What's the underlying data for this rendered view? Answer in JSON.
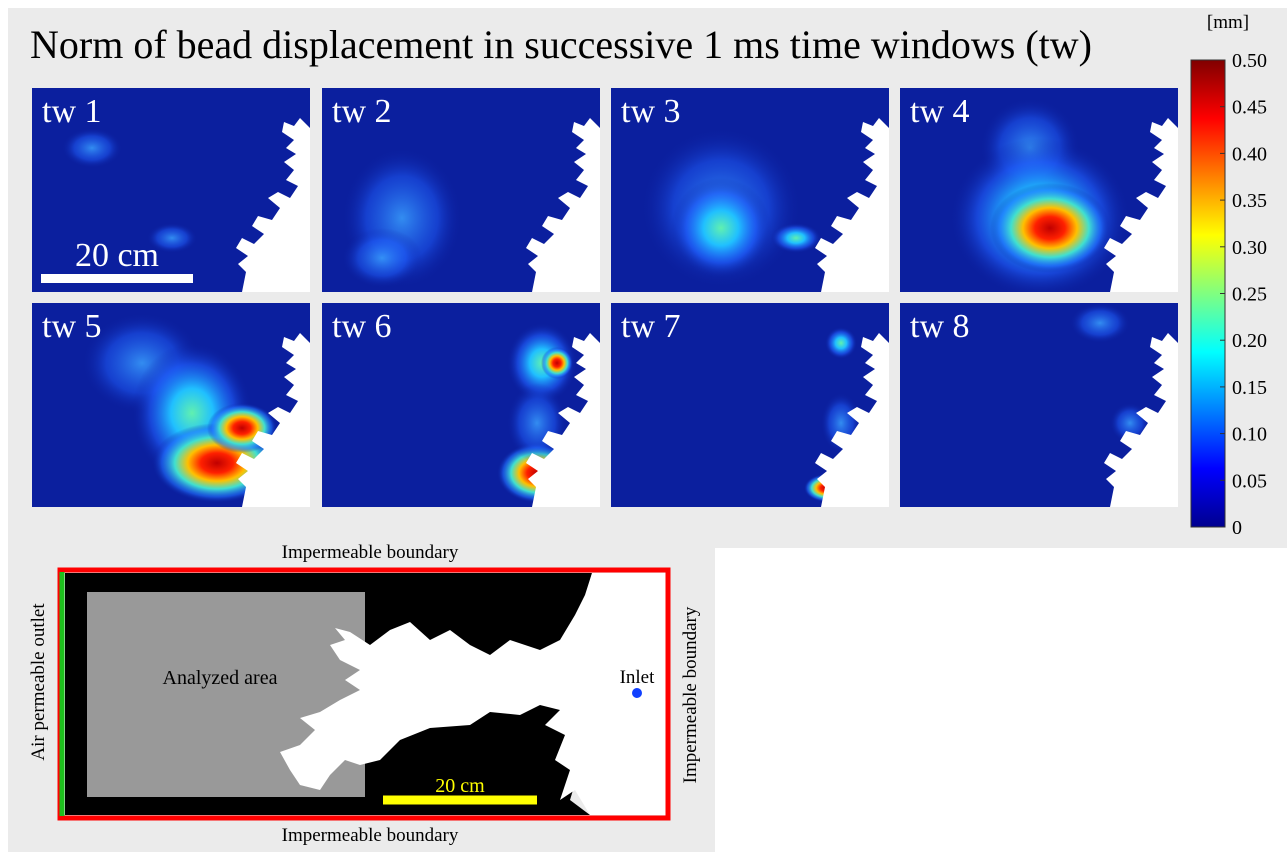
{
  "title": "Norm of bead displacement in successive 1 ms time windows (tw)",
  "panels": [
    {
      "label": "tw 1"
    },
    {
      "label": "tw 2"
    },
    {
      "label": "tw 3"
    },
    {
      "label": "tw 4"
    },
    {
      "label": "tw 5"
    },
    {
      "label": "tw 6"
    },
    {
      "label": "tw 7"
    },
    {
      "label": "tw 8"
    }
  ],
  "scale_bar": "20 cm",
  "colorbar": {
    "unit": "[mm]",
    "range": [
      0,
      0.5
    ],
    "colormap": [
      "#00008f",
      "#0000ff",
      "#0080ff",
      "#00ffff",
      "#80ff80",
      "#ffff00",
      "#ff8000",
      "#ff0000",
      "#800000"
    ],
    "ticks": [
      0,
      0.05,
      {
        "value": 0.1,
        "label": "0.10"
      },
      0.15,
      {
        "value": 0.2,
        "label": "0.20"
      },
      0.25,
      {
        "value": 0.3,
        "label": "0.30"
      },
      0.35,
      {
        "value": 0.4,
        "label": "0.40"
      },
      0.45,
      {
        "value": 0.5,
        "label": "0.50"
      }
    ]
  },
  "diagram": {
    "top_boundary": "Impermeable boundary",
    "bottom_boundary": "Impermeable boundary",
    "right_boundary": "Impermeable boundary",
    "outlet": "Air permeable outlet",
    "area": "Analyzed area",
    "inlet": "Inlet",
    "scale_bar": "20 cm"
  }
}
